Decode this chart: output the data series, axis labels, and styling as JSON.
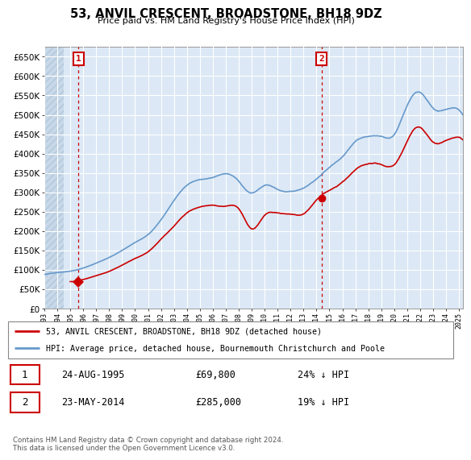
{
  "title": "53, ANVIL CRESCENT, BROADSTONE, BH18 9DZ",
  "subtitle": "Price paid vs. HM Land Registry's House Price Index (HPI)",
  "ylabel_ticks": [
    0,
    50000,
    100000,
    150000,
    200000,
    250000,
    300000,
    350000,
    400000,
    450000,
    500000,
    550000,
    600000,
    650000
  ],
  "ylim": [
    0,
    675000
  ],
  "xlim_start": 1993.0,
  "xlim_end": 2025.3,
  "sale1_x": 1995.64,
  "sale1_y": 69800,
  "sale2_x": 2014.38,
  "sale2_y": 285000,
  "sale1_date": "24-AUG-1995",
  "sale1_price": "£69,800",
  "sale1_pct": "24% ↓ HPI",
  "sale2_date": "23-MAY-2014",
  "sale2_price": "£285,000",
  "sale2_pct": "19% ↓ HPI",
  "red_line_label": "53, ANVIL CRESCENT, BROADSTONE, BH18 9DZ (detached house)",
  "blue_line_label": "HPI: Average price, detached house, Bournemouth Christchurch and Poole",
  "footnote": "Contains HM Land Registry data © Crown copyright and database right 2024.\nThis data is licensed under the Open Government Licence v3.0.",
  "red_color": "#cc0000",
  "blue_color": "#6699cc",
  "plot_bg": "#dce8f5",
  "hatch_color": "#c8d8e8",
  "grid_color": "#ffffff",
  "hpi_years": [
    1993,
    1994,
    1995,
    1996,
    1997,
    1998,
    1999,
    2000,
    2001,
    2002,
    2003,
    2004,
    2005,
    2006,
    2007,
    2008,
    2009,
    2010,
    2011,
    2012,
    2013,
    2014,
    2015,
    2016,
    2017,
    2018,
    2019,
    2020,
    2021,
    2022,
    2023,
    2024,
    2025
  ],
  "hpi_vals": [
    88000,
    93000,
    97000,
    105000,
    118000,
    132000,
    150000,
    170000,
    192000,
    230000,
    280000,
    320000,
    335000,
    340000,
    350000,
    330000,
    300000,
    320000,
    310000,
    305000,
    315000,
    340000,
    370000,
    400000,
    440000,
    455000,
    455000,
    460000,
    540000,
    575000,
    535000,
    530000,
    525000
  ],
  "red_years": [
    1995,
    1996,
    1997,
    1998,
    1999,
    2000,
    2001,
    2002,
    2003,
    2004,
    2005,
    2006,
    2007,
    2008,
    2009,
    2010,
    2011,
    2012,
    2013,
    2014,
    2015,
    2016,
    2017,
    2018,
    2019,
    2020,
    2021,
    2022,
    2023,
    2024,
    2025
  ],
  "red_vals": [
    69800,
    75000,
    85000,
    96000,
    112000,
    130000,
    148000,
    180000,
    215000,
    250000,
    265000,
    270000,
    268000,
    262000,
    210000,
    245000,
    250000,
    248000,
    249000,
    285000,
    310000,
    330000,
    360000,
    375000,
    370000,
    370000,
    430000,
    465000,
    430000,
    435000,
    445000
  ]
}
